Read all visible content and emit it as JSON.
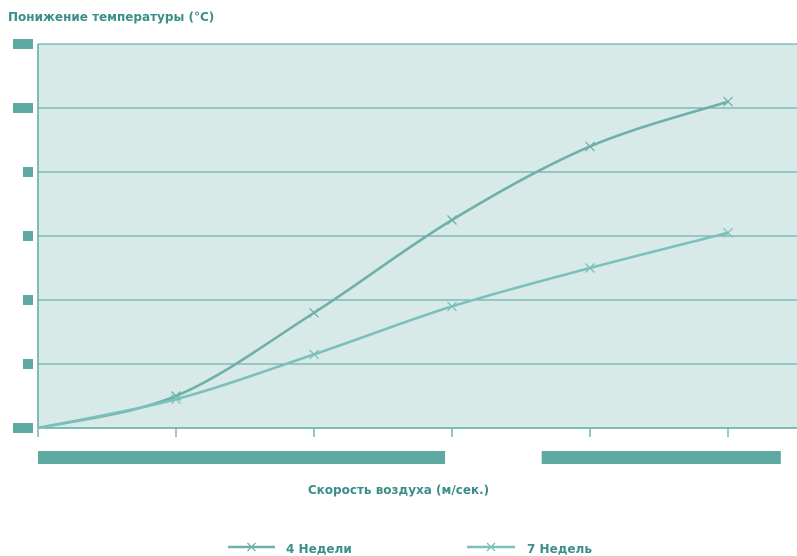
{
  "chart_data": {
    "type": "line",
    "title": "",
    "ylabel": "Понижение температуры (°C)",
    "xlabel": "Скорость воздуха (м/сек.)",
    "xlim": [
      0,
      5.5
    ],
    "ylim": [
      0,
      6
    ],
    "x_ticks": [
      0,
      1,
      2,
      3,
      4,
      5
    ],
    "grid": true,
    "legend": "bottom",
    "series": [
      {
        "name": "4 Недели",
        "color": "#6fb0aa",
        "x": [
          0,
          1,
          2,
          3,
          4,
          5
        ],
        "y": [
          0,
          0.5,
          1.8,
          3.25,
          4.4,
          5.1
        ]
      },
      {
        "name": "7 Недель",
        "color": "#7cc0bb",
        "x": [
          0,
          1,
          2,
          3,
          4,
          5
        ],
        "y": [
          0,
          0.45,
          1.15,
          1.9,
          2.5,
          3.05
        ]
      }
    ],
    "colors": {
      "plot_bg": "#d7eae8",
      "grid": "#6fb0aa",
      "axis": "#5fa9a3",
      "tick_block": "#5fa9a3",
      "text": "#3a8f8b"
    }
  }
}
